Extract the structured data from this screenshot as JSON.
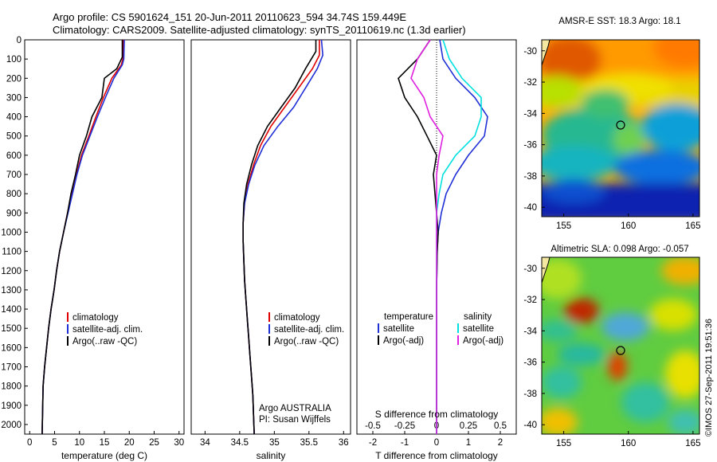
{
  "header": {
    "line1": "Argo profile: CS 5901624_151 20-Jun-2011 20110623_594 34.74S 159.449E",
    "line2": "Climatology: CARS2009. Satellite-adjusted climatology: synTS_20110619.nc (1.3d earlier)"
  },
  "colors": {
    "climatology": "#e00000",
    "satellite": "#1f2fd6",
    "argo": "#000000",
    "sat_salinity": "#00e0e0",
    "argo_salinity": "#e020e0"
  },
  "depth_ticks": [
    "0",
    "100",
    "200",
    "300",
    "400",
    "500",
    "600",
    "700",
    "800",
    "900",
    "1000",
    "1100",
    "1200",
    "1300",
    "1400",
    "1500",
    "1600",
    "1700",
    "1800",
    "1900",
    "2000"
  ],
  "panel_temp": {
    "xlabel": "temperature (deg C)",
    "xticks": [
      "0",
      "5",
      "10",
      "15",
      "20",
      "25",
      "30"
    ],
    "legend": [
      "climatology",
      "satellite-adj. clim.",
      "Argo(..raw -QC)"
    ]
  },
  "panel_sal": {
    "xlabel": "salinity",
    "xticks": [
      "34",
      "34.5",
      "35",
      "35.5",
      "36"
    ],
    "legend": [
      "climatology",
      "satellite-adj. clim.",
      "Argo(..raw -QC)"
    ],
    "note1": "Argo AUSTRALIA",
    "note2": "PI: Susan Wijffels"
  },
  "panel_diff": {
    "xlabel": "T difference from climatology",
    "top_label": "S difference from climatology",
    "xticks": [
      "-2",
      "-1",
      "0",
      "1",
      "2"
    ],
    "sticks": [
      "-0.5",
      "-0.25",
      "0",
      "0.25",
      "0.5"
    ],
    "legend_t_title": "temperature",
    "legend_s_title": "salinity",
    "legend_t": [
      "satellite",
      "Argo(-adj)"
    ],
    "legend_s": [
      "satellite",
      "Argo(-adj)"
    ]
  },
  "map_sst": {
    "title": "AMSR-E SST: 18.3 Argo: 18.1",
    "yticks": [
      "-30",
      "-32",
      "-34",
      "-36",
      "-38",
      "-40"
    ],
    "xticks": [
      "155",
      "160",
      "165"
    ]
  },
  "map_sla": {
    "title": "Altimetric SLA: 0.098 Argo: -0.057",
    "yticks": [
      "-30",
      "-32",
      "-34",
      "-36",
      "-38",
      "-40"
    ],
    "xticks": [
      "155",
      "160",
      "165"
    ]
  },
  "stamp": "©IMOS 27-Sep-2011 19:51:36",
  "chart_data": [
    {
      "type": "line",
      "ylabel": "",
      "xlabel": "temperature (deg C)",
      "xlim": [
        -1,
        31
      ],
      "ylim": [
        2050,
        0
      ],
      "series": [
        {
          "name": "climatology",
          "x": [
            18.8,
            18.7,
            18.4,
            16.5,
            14.8,
            13.3,
            11.9,
            10.4,
            9.4,
            8.5,
            7.6,
            6.8,
            6.0,
            5.4,
            4.9,
            4.3,
            3.8,
            3.4,
            3.0,
            2.7,
            2.5
          ],
          "y": [
            0,
            100,
            130,
            200,
            300,
            400,
            500,
            600,
            700,
            800,
            900,
            1000,
            1100,
            1200,
            1300,
            1400,
            1500,
            1600,
            1700,
            1800,
            2050
          ]
        },
        {
          "name": "satellite-adj. clim.",
          "x": [
            19.0,
            18.9,
            18.6,
            16.9,
            15.2,
            13.6,
            12.1,
            10.6,
            9.5,
            8.6,
            7.7,
            6.8,
            6.0,
            5.4,
            4.9,
            4.3,
            3.8,
            3.4,
            3.0,
            2.7,
            2.5
          ],
          "y": [
            0,
            100,
            130,
            200,
            300,
            400,
            500,
            600,
            700,
            800,
            900,
            1000,
            1100,
            1200,
            1300,
            1400,
            1500,
            1600,
            1700,
            1800,
            2050
          ]
        },
        {
          "name": "Argo(..raw -QC)",
          "x": [
            18.6,
            18.6,
            17.5,
            15.0,
            14.5,
            12.5,
            11.4,
            10.0,
            9.2,
            8.3,
            7.6,
            6.8,
            6.0,
            5.4,
            4.9,
            4.3,
            3.8,
            3.4,
            3.0,
            2.7,
            2.5
          ],
          "y": [
            0,
            90,
            150,
            200,
            300,
            400,
            500,
            600,
            700,
            800,
            900,
            1000,
            1100,
            1200,
            1300,
            1400,
            1500,
            1600,
            1700,
            1800,
            2050
          ]
        }
      ]
    },
    {
      "type": "line",
      "xlabel": "salinity",
      "xlim": [
        33.8,
        36.1
      ],
      "ylim": [
        2050,
        0
      ],
      "series": [
        {
          "name": "climatology",
          "x": [
            35.65,
            35.65,
            35.55,
            35.35,
            35.15,
            34.95,
            34.8,
            34.7,
            34.62,
            34.57,
            34.55,
            34.55,
            34.56,
            34.57,
            34.59,
            34.61,
            34.63,
            34.65,
            34.67,
            34.69,
            34.71
          ],
          "y": [
            0,
            80,
            150,
            250,
            350,
            450,
            550,
            650,
            750,
            850,
            950,
            1050,
            1150,
            1250,
            1350,
            1450,
            1550,
            1650,
            1750,
            1850,
            2050
          ]
        },
        {
          "name": "satellite-adj. clim.",
          "x": [
            35.68,
            35.7,
            35.62,
            35.45,
            35.28,
            35.05,
            34.85,
            34.72,
            34.63,
            34.57,
            34.55,
            34.55,
            34.56,
            34.57,
            34.59,
            34.61,
            34.63,
            34.65,
            34.67,
            34.69,
            34.71
          ],
          "y": [
            0,
            80,
            150,
            250,
            350,
            450,
            550,
            650,
            750,
            850,
            950,
            1050,
            1150,
            1250,
            1350,
            1450,
            1550,
            1650,
            1750,
            1850,
            2050
          ]
        },
        {
          "name": "Argo(..raw -QC)",
          "x": [
            35.6,
            35.6,
            35.45,
            35.3,
            35.1,
            34.9,
            34.76,
            34.67,
            34.6,
            34.56,
            34.55,
            34.55,
            34.56,
            34.57,
            34.59,
            34.61,
            34.63,
            34.65,
            34.67,
            34.69,
            34.71
          ],
          "y": [
            0,
            60,
            150,
            250,
            350,
            450,
            550,
            650,
            750,
            850,
            950,
            1050,
            1150,
            1250,
            1350,
            1450,
            1550,
            1650,
            1750,
            1850,
            2050
          ]
        }
      ]
    },
    {
      "type": "line",
      "xlabel": "T difference from climatology",
      "xlim": [
        -2.5,
        2.5
      ],
      "ylim": [
        2050,
        0
      ],
      "series": [
        {
          "name": "temperature satellite",
          "x": [
            0.1,
            0.2,
            0.6,
            1.2,
            1.6,
            1.5,
            1.0,
            0.6,
            0.3,
            0.15,
            0.05,
            0.02,
            0.01,
            0,
            0,
            0,
            0,
            0,
            0,
            0,
            0
          ],
          "y": [
            0,
            100,
            200,
            300,
            400,
            500,
            600,
            700,
            800,
            900,
            1000,
            1100,
            1200,
            1300,
            1400,
            1500,
            1600,
            1700,
            1800,
            1900,
            2050
          ]
        },
        {
          "name": "temperature Argo(-adj)",
          "x": [
            -0.2,
            -0.6,
            -1.2,
            -1.0,
            -0.6,
            -0.3,
            0.0,
            -0.1,
            -0.05,
            0.0,
            0.05,
            0.02,
            0.01,
            0,
            0,
            0,
            0,
            0,
            0,
            0,
            0
          ],
          "y": [
            0,
            100,
            200,
            300,
            400,
            500,
            600,
            700,
            800,
            900,
            1000,
            1100,
            1200,
            1300,
            1400,
            1500,
            1600,
            1700,
            1800,
            1900,
            2050
          ]
        },
        {
          "name": "salinity satellite",
          "x": [
            0.05,
            0.1,
            0.2,
            0.35,
            0.35,
            0.3,
            0.15,
            0.05,
            0.02,
            0,
            0,
            0,
            0,
            0,
            0,
            0,
            0,
            0,
            0,
            0,
            0
          ],
          "y": [
            0,
            100,
            200,
            300,
            400,
            500,
            600,
            700,
            800,
            900,
            1000,
            1100,
            1200,
            1300,
            1400,
            1500,
            1600,
            1700,
            1800,
            1900,
            2050
          ]
        },
        {
          "name": "salinity Argo(-adj)",
          "x": [
            -0.05,
            -0.15,
            -0.2,
            -0.1,
            -0.05,
            0.05,
            0.02,
            0,
            0,
            0,
            0,
            0,
            0,
            0,
            0,
            0,
            0,
            0,
            0,
            0,
            0
          ],
          "y": [
            0,
            100,
            200,
            300,
            400,
            500,
            600,
            700,
            800,
            900,
            1000,
            1100,
            1200,
            1300,
            1400,
            1500,
            1600,
            1700,
            1800,
            1900,
            2050
          ]
        }
      ]
    }
  ]
}
